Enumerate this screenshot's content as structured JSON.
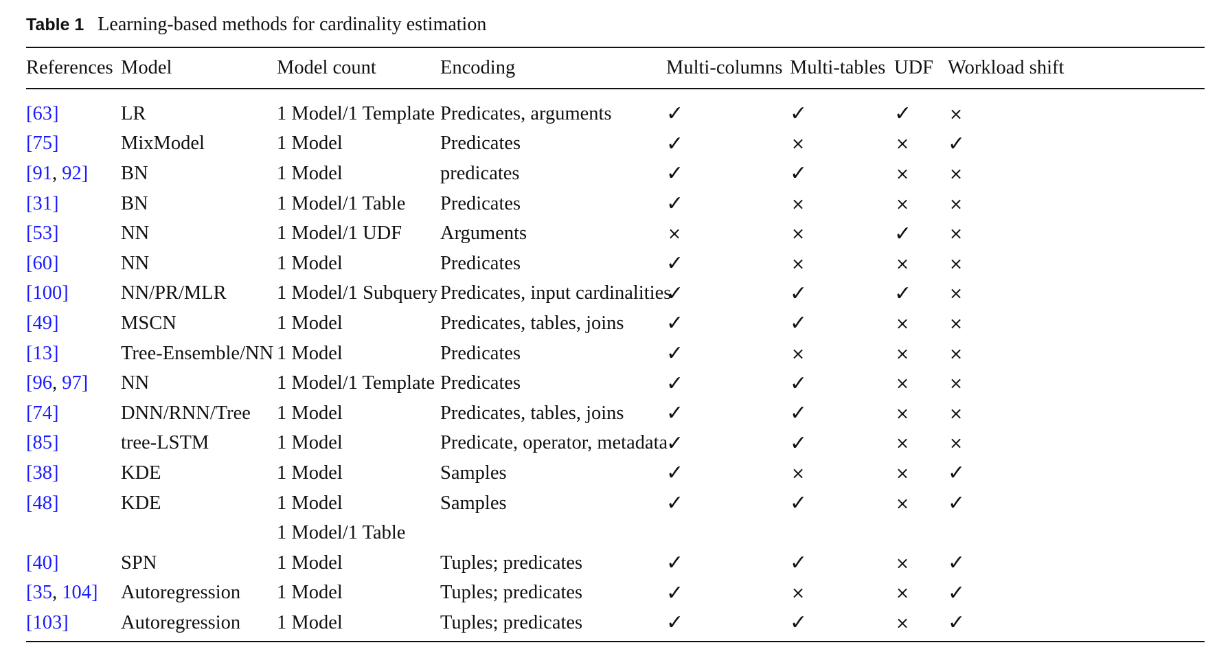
{
  "caption": {
    "label": "Table 1",
    "text": "Learning-based methods for cardinality estimation"
  },
  "columns": [
    "References",
    "Model",
    "Model count",
    "Encoding",
    "Multi-columns",
    "Multi-tables",
    "UDF",
    "Workload shift"
  ],
  "marks": {
    "yes": "✓",
    "no": "×"
  },
  "rows": [
    {
      "refs": [
        "63"
      ],
      "model": "LR",
      "count": "1 Model/1 Template",
      "encoding": "Predicates, arguments",
      "multi_columns": true,
      "multi_tables": true,
      "udf": true,
      "workload_shift": false
    },
    {
      "refs": [
        "75"
      ],
      "model": "MixModel",
      "count": "1 Model",
      "encoding": "Predicates",
      "multi_columns": true,
      "multi_tables": false,
      "udf": false,
      "workload_shift": true
    },
    {
      "refs": [
        "91",
        "92"
      ],
      "model": "BN",
      "count": "1 Model",
      "encoding": "predicates",
      "multi_columns": true,
      "multi_tables": true,
      "udf": false,
      "workload_shift": false
    },
    {
      "refs": [
        "31"
      ],
      "model": "BN",
      "count": "1 Model/1 Table",
      "encoding": "Predicates",
      "multi_columns": true,
      "multi_tables": false,
      "udf": false,
      "workload_shift": false
    },
    {
      "refs": [
        "53"
      ],
      "model": "NN",
      "count": "1 Model/1 UDF",
      "encoding": "Arguments",
      "multi_columns": false,
      "multi_tables": false,
      "udf": true,
      "workload_shift": false
    },
    {
      "refs": [
        "60"
      ],
      "model": "NN",
      "count": "1 Model",
      "encoding": "Predicates",
      "multi_columns": true,
      "multi_tables": false,
      "udf": false,
      "workload_shift": false
    },
    {
      "refs": [
        "100"
      ],
      "model": "NN/PR/MLR",
      "count": "1 Model/1 Subquery",
      "encoding": "Predicates, input cardinalities",
      "multi_columns": true,
      "multi_tables": true,
      "udf": true,
      "workload_shift": false
    },
    {
      "refs": [
        "49"
      ],
      "model": "MSCN",
      "count": "1 Model",
      "encoding": "Predicates, tables, joins",
      "multi_columns": true,
      "multi_tables": true,
      "udf": false,
      "workload_shift": false
    },
    {
      "refs": [
        "13"
      ],
      "model": "Tree-Ensemble/NN",
      "count": "1 Model",
      "encoding": "Predicates",
      "multi_columns": true,
      "multi_tables": false,
      "udf": false,
      "workload_shift": false
    },
    {
      "refs": [
        "96",
        "97"
      ],
      "model": "NN",
      "count": "1 Model/1 Template",
      "encoding": "Predicates",
      "multi_columns": true,
      "multi_tables": true,
      "udf": false,
      "workload_shift": false
    },
    {
      "refs": [
        "74"
      ],
      "model": "DNN/RNN/Tree",
      "count": "1 Model",
      "encoding": "Predicates, tables, joins",
      "multi_columns": true,
      "multi_tables": true,
      "udf": false,
      "workload_shift": false
    },
    {
      "refs": [
        "85"
      ],
      "model": "tree-LSTM",
      "count": "1 Model",
      "encoding": "Predicate, operator, metadata",
      "multi_columns": true,
      "multi_tables": true,
      "udf": false,
      "workload_shift": false
    },
    {
      "refs": [
        "38"
      ],
      "model": "KDE",
      "count": "1 Model",
      "encoding": "Samples",
      "multi_columns": true,
      "multi_tables": false,
      "udf": false,
      "workload_shift": true
    },
    {
      "refs": [
        "48"
      ],
      "model": "KDE",
      "count": "1 Model",
      "encoding": "Samples",
      "multi_columns": true,
      "multi_tables": true,
      "udf": false,
      "workload_shift": true
    },
    {
      "refs": [],
      "model": "",
      "count": "1 Model/1 Table",
      "encoding": "",
      "multi_columns": null,
      "multi_tables": null,
      "udf": null,
      "workload_shift": null
    },
    {
      "refs": [
        "40"
      ],
      "model": "SPN",
      "count": "1 Model",
      "encoding": "Tuples; predicates",
      "multi_columns": true,
      "multi_tables": true,
      "udf": false,
      "workload_shift": true
    },
    {
      "refs": [
        "35",
        "104"
      ],
      "model": "Autoregression",
      "count": "1 Model",
      "encoding": "Tuples; predicates",
      "multi_columns": true,
      "multi_tables": false,
      "udf": false,
      "workload_shift": true
    },
    {
      "refs": [
        "103"
      ],
      "model": "Autoregression",
      "count": "1 Model",
      "encoding": "Tuples; predicates",
      "multi_columns": true,
      "multi_tables": true,
      "udf": false,
      "workload_shift": true
    }
  ]
}
